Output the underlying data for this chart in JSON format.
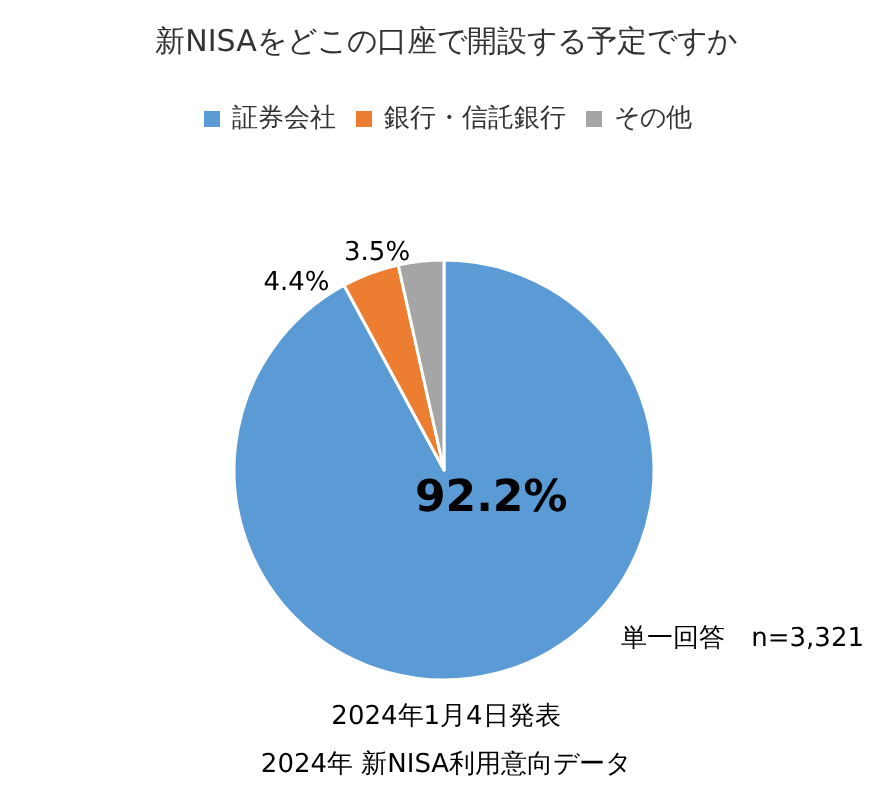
{
  "chart_data": {
    "type": "pie",
    "title": "新NISAをどこの口座で開設する予定ですか",
    "categories": [
      "証券会社",
      "銀行・信託銀行",
      "その他"
    ],
    "values": [
      92.2,
      4.4,
      3.5
    ],
    "colors": [
      "#5b9bd5",
      "#ed7d31",
      "#a5a5a5"
    ],
    "value_labels": [
      "92.2%",
      "4.4%",
      "3.5%"
    ],
    "legend": "top",
    "annotations": [
      "単一回答　n=3,321",
      "2024年1月4日発表",
      "2024年 新NISA利用意向データ"
    ]
  }
}
